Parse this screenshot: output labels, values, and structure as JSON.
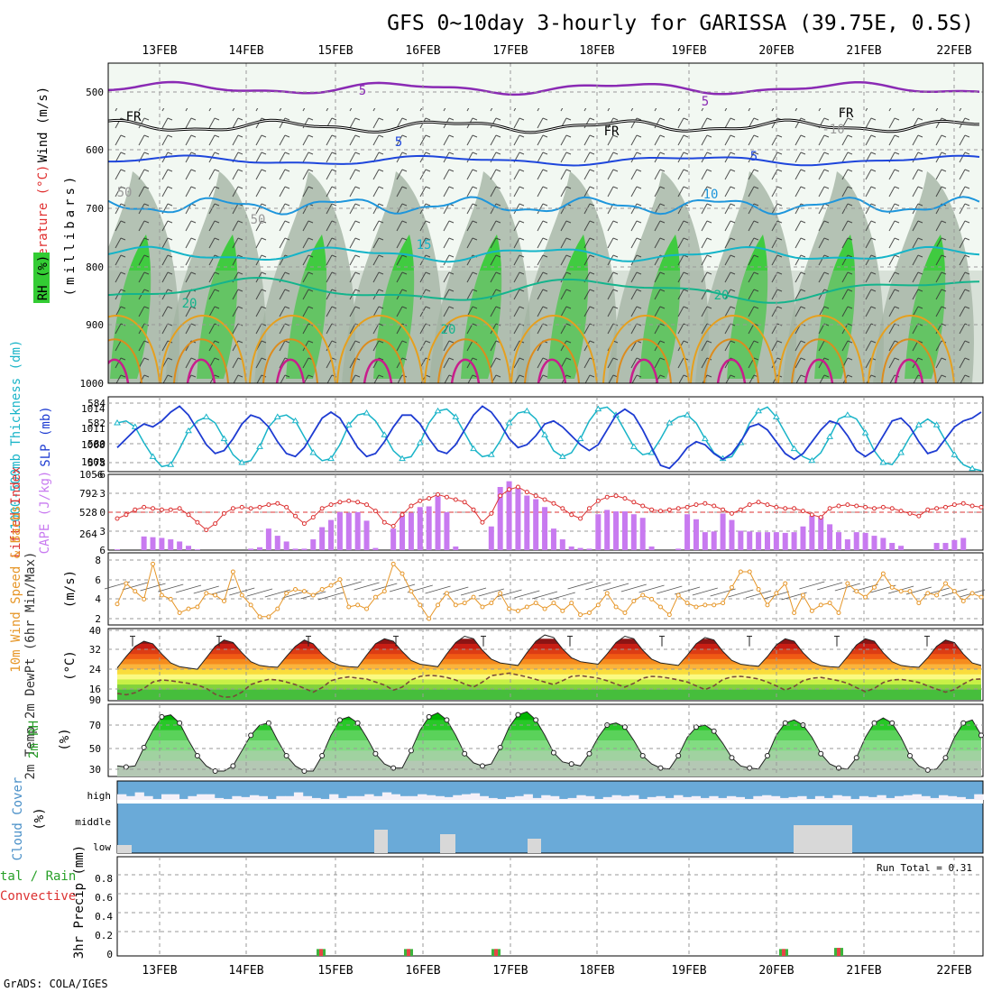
{
  "title": "GFS 0~10day 3-hourly for GARISSA (39.75E, 0.5S)",
  "footer": "GrADS: COLA/IGES",
  "dates": [
    "13FEB",
    "14FEB",
    "15FEB",
    "16FEB",
    "17FEB",
    "18FEB",
    "19FEB",
    "20FEB",
    "21FEB",
    "22FEB"
  ],
  "colors": {
    "rh_green": "#33cc33",
    "rh_gray": "#b8c8b8",
    "thickness": "#19b4c8",
    "slp": "#1e3cd2",
    "lifted": "#dc3232",
    "cape": "#c87af0",
    "wind": "#e69628",
    "dewpt": "#7a4a3a",
    "rh2m": "#28c828",
    "cloud": "#6aaad8",
    "cloud_gap": "#d8d8d8",
    "precip_total": "#3cb43c",
    "precip_conv": "#e64646"
  },
  "panels": {
    "pressure": {
      "ylabel_wind": "Wind (m/s)",
      "ylabel_temp": "Temperature (°C)",
      "ylabel_mb": "(millibars)",
      "ylabel_rh": "RH (%)",
      "ticks": [
        "500",
        "600",
        "700",
        "800",
        "900",
        "1000"
      ],
      "contour_labels": [
        "5",
        "5",
        "5",
        "5",
        "10",
        "15",
        "20",
        "20",
        "20",
        "FR",
        "FR",
        "FR",
        "-10",
        "50",
        "50"
      ]
    },
    "thickness_slp": {
      "ylabel_left": "1000-500mb Thickness (dm)",
      "ylabel_right": "SLP (mb)",
      "left_ticks": [
        "584",
        "582",
        "580",
        "578"
      ],
      "right_ticks": [
        "1014",
        "1011",
        "1008",
        "1005"
      ]
    },
    "lifted_cape": {
      "ylabel_left": "Lifted Index",
      "ylabel_right": "CAPE (J/kg)",
      "left_ticks": [
        "-6",
        "-3",
        "0",
        "3",
        "6"
      ],
      "right_ticks": [
        "1056",
        "792",
        "528",
        "264"
      ]
    },
    "wind10m": {
      "ylabel": "10m Wind Speed & Barbs",
      "unit": "(m/s)",
      "ticks": [
        "8",
        "6",
        "4",
        "2"
      ]
    },
    "temp2m": {
      "ylabel": "2m Temp 2m DewPt (6hr Min/Max)",
      "unit": "(°C)",
      "ticks": [
        "40",
        "32",
        "24",
        "16",
        "90"
      ]
    },
    "rh2m": {
      "ylabel": "2m RH",
      "unit": "(%)",
      "ticks": [
        "70",
        "50",
        "30"
      ]
    },
    "cloud": {
      "ylabel": "Cloud Cover",
      "unit": "(%)",
      "levels": [
        "high",
        "middle",
        "low"
      ]
    },
    "precip": {
      "ylabel": "3hr Precip (mm)",
      "legend_total": "tal / Rain",
      "legend_conv": "Convective",
      "run_total": "Run Total = 0.31",
      "ticks": [
        "0.8",
        "0.6",
        "0.4",
        "0.2",
        "0"
      ]
    }
  },
  "chart_data": {
    "type": "meteogram",
    "time_step_hours": 3,
    "x_range_days": [
      "13FEB",
      "22FEB"
    ],
    "thickness_dm": [
      582.0,
      582.2,
      581.6,
      580.0,
      578.6,
      577.6,
      577.8,
      579.4,
      581.2,
      582.2,
      582.6,
      582.0,
      580.4,
      578.8,
      578.0,
      578.2,
      579.6,
      581.6,
      582.6,
      582.8,
      582.2,
      580.6,
      579.0,
      578.2,
      578.4,
      579.8,
      581.8,
      582.8,
      583.0,
      582.2,
      580.8,
      579.2,
      578.4,
      578.6,
      580.0,
      582.0,
      583.2,
      583.4,
      582.6,
      581.0,
      579.4,
      578.6,
      578.8,
      580.2,
      582.0,
      583.0,
      583.2,
      582.4,
      580.8,
      579.2,
      578.6,
      579.0,
      580.4,
      582.2,
      583.4,
      583.6,
      582.8,
      581.2,
      579.6,
      578.8,
      579.0,
      580.4,
      582.0,
      582.6,
      582.8,
      582.0,
      580.4,
      579.0,
      578.4,
      578.6,
      580.0,
      582.0,
      583.2,
      583.6,
      582.6,
      581.0,
      579.4,
      578.6,
      578.2,
      579.0,
      580.6,
      582.4,
      582.8,
      582.4,
      581.0,
      579.2,
      578.0,
      577.8,
      579.0,
      580.6,
      581.8,
      582.4,
      581.8,
      580.2,
      578.8,
      577.8,
      577.4,
      577.2
    ],
    "slp_mb": [
      1008.0,
      1009.5,
      1011.0,
      1012.0,
      1011.5,
      1012.5,
      1014.0,
      1015.0,
      1013.5,
      1011.0,
      1008.5,
      1007.0,
      1007.5,
      1009.5,
      1012.0,
      1013.5,
      1013.0,
      1011.5,
      1009.0,
      1007.0,
      1006.5,
      1008.0,
      1010.5,
      1013.0,
      1014.0,
      1013.0,
      1010.5,
      1008.0,
      1006.5,
      1007.0,
      1009.0,
      1011.5,
      1013.5,
      1013.5,
      1012.0,
      1009.5,
      1007.5,
      1007.0,
      1008.5,
      1011.0,
      1013.5,
      1015.0,
      1014.0,
      1012.0,
      1009.5,
      1008.0,
      1008.5,
      1010.0,
      1012.0,
      1012.5,
      1011.5,
      1010.0,
      1008.5,
      1007.5,
      1008.5,
      1011.0,
      1013.5,
      1014.5,
      1013.5,
      1011.0,
      1008.0,
      1005.0,
      1004.5,
      1006.0,
      1008.0,
      1009.0,
      1008.5,
      1007.0,
      1006.0,
      1007.0,
      1009.0,
      1011.5,
      1012.0,
      1011.0,
      1009.0,
      1007.0,
      1006.0,
      1007.0,
      1009.0,
      1011.0,
      1012.5,
      1012.0,
      1010.0,
      1007.5,
      1006.5,
      1007.5,
      1010.0,
      1012.5,
      1013.0,
      1011.5,
      1009.0,
      1007.0,
      1007.5,
      1009.5,
      1011.5,
      1012.5,
      1013.0,
      1014.0
    ],
    "lifted_index": [
      1.0,
      0.4,
      -0.4,
      -0.8,
      -0.6,
      -0.4,
      -0.4,
      -0.6,
      0.4,
      1.6,
      2.8,
      1.8,
      0.2,
      -0.6,
      -0.8,
      -0.6,
      -0.8,
      -1.2,
      -1.4,
      -0.8,
      0.6,
      1.8,
      0.8,
      -0.6,
      -1.2,
      -1.6,
      -1.8,
      -1.6,
      -1.2,
      -0.2,
      1.6,
      2.2,
      0.4,
      -1.0,
      -1.8,
      -2.2,
      -2.8,
      -2.4,
      -2.0,
      -1.6,
      -0.4,
      1.6,
      0.2,
      -2.6,
      -3.6,
      -4.0,
      -3.2,
      -2.6,
      -2.0,
      -1.4,
      -0.6,
      0.4,
      1.0,
      -0.6,
      -1.8,
      -2.4,
      -2.6,
      -2.2,
      -1.6,
      -1.0,
      -0.4,
      -0.2,
      -0.4,
      -0.6,
      -0.8,
      -1.2,
      -1.4,
      -1.0,
      -0.4,
      0.2,
      -0.4,
      -1.2,
      -1.6,
      -1.2,
      -0.8,
      -0.6,
      -0.6,
      -0.2,
      0.4,
      0.8,
      -0.6,
      -1.0,
      -1.2,
      -1.0,
      -0.8,
      -0.6,
      -0.8,
      -0.6,
      -0.2,
      0.2,
      0.6,
      -0.4,
      -0.6,
      -0.8,
      -1.2,
      -1.4,
      -1.0,
      -0.8
    ],
    "cape_jkg": [
      10,
      0,
      0,
      190,
      180,
      170,
      150,
      120,
      60,
      10,
      0,
      0,
      0,
      0,
      0,
      20,
      40,
      300,
      200,
      120,
      20,
      20,
      150,
      320,
      420,
      530,
      520,
      530,
      410,
      30,
      0,
      300,
      500,
      520,
      600,
      610,
      750,
      530,
      50,
      0,
      0,
      0,
      330,
      880,
      960,
      860,
      760,
      710,
      600,
      300,
      150,
      50,
      30,
      20,
      500,
      560,
      540,
      540,
      500,
      450,
      50,
      0,
      0,
      20,
      500,
      430,
      250,
      260,
      510,
      420,
      270,
      260,
      250,
      250,
      250,
      240,
      250,
      330,
      480,
      470,
      360,
      250,
      150,
      250,
      240,
      200,
      170,
      100,
      60,
      0,
      0,
      0,
      100,
      100,
      140,
      170,
      0,
      0
    ],
    "wind10m_ms": [
      3.5,
      5.6,
      4.8,
      4.0,
      7.6,
      4.4,
      4.0,
      2.6,
      3.0,
      3.2,
      4.6,
      4.4,
      3.8,
      6.8,
      4.4,
      3.4,
      2.2,
      2.2,
      3.0,
      4.6,
      5.0,
      4.8,
      4.4,
      5.0,
      5.4,
      6.0,
      3.2,
      3.4,
      3.0,
      4.2,
      4.8,
      7.6,
      6.6,
      4.8,
      3.4,
      2.0,
      3.4,
      4.6,
      3.4,
      3.6,
      4.2,
      3.2,
      3.6,
      4.6,
      3.0,
      2.8,
      3.2,
      3.6,
      3.0,
      3.6,
      2.8,
      3.6,
      2.4,
      2.6,
      3.4,
      4.6,
      3.2,
      2.6,
      3.8,
      4.4,
      4.0,
      3.2,
      2.4,
      4.4,
      3.6,
      3.2,
      3.4,
      3.4,
      3.6,
      5.2,
      6.8,
      6.8,
      5.0,
      3.4,
      4.6,
      5.6,
      2.6,
      4.4,
      2.8,
      3.4,
      3.6,
      2.6,
      5.6,
      4.8,
      4.2,
      5.2,
      6.6,
      5.2,
      4.8,
      4.8,
      3.6,
      4.6,
      4.4,
      5.6,
      4.8,
      3.8,
      4.6,
      4.2
    ],
    "temp2m_c": [
      24.5,
      29.0,
      33.0,
      35.0,
      34.0,
      30.0,
      26.5,
      25.0,
      24.5,
      24.0,
      28.5,
      33.0,
      35.5,
      34.5,
      30.5,
      27.0,
      25.5,
      25.0,
      24.8,
      29.0,
      33.0,
      35.5,
      34.0,
      30.0,
      27.0,
      25.5,
      25.0,
      24.8,
      29.5,
      34.0,
      36.0,
      35.0,
      31.0,
      27.5,
      26.0,
      25.5,
      25.0,
      30.0,
      34.5,
      37.0,
      36.0,
      31.5,
      28.0,
      26.5,
      26.0,
      25.5,
      30.5,
      35.0,
      37.5,
      36.5,
      32.0,
      28.5,
      27.0,
      26.5,
      26.0,
      30.0,
      34.5,
      37.0,
      36.0,
      31.5,
      28.0,
      26.5,
      26.0,
      25.5,
      29.5,
      34.0,
      36.5,
      35.5,
      31.0,
      27.5,
      26.0,
      25.5,
      25.2,
      29.0,
      33.5,
      36.0,
      35.0,
      30.5,
      27.0,
      25.5,
      25.0,
      24.8,
      29.0,
      33.5,
      36.0,
      35.0,
      30.5,
      27.0,
      25.5,
      25.0,
      24.8,
      28.5,
      33.0,
      35.5,
      34.5,
      30.0,
      26.5,
      25.5
    ],
    "dewpt2m_c": [
      14.5,
      14.0,
      14.8,
      16.5,
      19.0,
      19.8,
      19.5,
      19.0,
      18.5,
      17.8,
      16.5,
      14.2,
      13.0,
      13.2,
      15.0,
      18.0,
      19.2,
      20.0,
      19.8,
      19.0,
      18.0,
      16.5,
      15.0,
      16.8,
      19.5,
      20.5,
      21.0,
      20.5,
      20.2,
      19.0,
      17.8,
      15.8,
      17.0,
      19.8,
      21.2,
      21.6,
      21.4,
      20.8,
      19.8,
      18.2,
      17.0,
      19.0,
      21.5,
      22.0,
      22.5,
      21.8,
      21.0,
      20.0,
      19.0,
      18.0,
      19.5,
      21.2,
      21.5,
      21.0,
      20.5,
      19.5,
      18.2,
      17.0,
      18.5,
      20.5,
      21.2,
      21.0,
      20.5,
      19.8,
      19.0,
      17.5,
      16.0,
      17.5,
      20.0,
      21.0,
      21.2,
      20.8,
      20.2,
      19.0,
      17.5,
      15.8,
      17.2,
      19.5,
      20.5,
      20.8,
      20.2,
      19.5,
      18.5,
      16.8,
      15.2,
      16.5,
      18.8,
      19.8,
      20.0,
      19.5,
      18.8,
      17.5,
      16.2,
      15.0,
      16.0,
      18.2,
      20.0,
      20.2
    ],
    "rh2m_pct": [
      30,
      29,
      30,
      48,
      65,
      78,
      80,
      72,
      55,
      40,
      30,
      25,
      25,
      30,
      45,
      60,
      70,
      72,
      55,
      40,
      30,
      25,
      25,
      40,
      60,
      75,
      78,
      72,
      58,
      42,
      32,
      28,
      28,
      45,
      65,
      78,
      82,
      75,
      60,
      42,
      33,
      30,
      32,
      48,
      68,
      80,
      83,
      75,
      60,
      43,
      34,
      32,
      30,
      42,
      58,
      70,
      72,
      68,
      55,
      40,
      32,
      28,
      27,
      40,
      58,
      68,
      70,
      64,
      52,
      38,
      30,
      28,
      27,
      40,
      60,
      72,
      75,
      70,
      58,
      42,
      32,
      28,
      27,
      38,
      58,
      72,
      77,
      72,
      58,
      40,
      30,
      26,
      27,
      38,
      58,
      72,
      75,
      60
    ],
    "cloud_high_pct": [
      70,
      80,
      60,
      80,
      95,
      70,
      70,
      95,
      80,
      70,
      70,
      90,
      95,
      80,
      85,
      75,
      80,
      95,
      80,
      80,
      60,
      80,
      90,
      95,
      70,
      90,
      80,
      80,
      70,
      80,
      60,
      70,
      80,
      80,
      70,
      75,
      80,
      85,
      75,
      70,
      65,
      80,
      90,
      95,
      85,
      80,
      70,
      90,
      75,
      80,
      95,
      90,
      75,
      80,
      95,
      85,
      75,
      80,
      75,
      95,
      85,
      80,
      90,
      75,
      85,
      80,
      90,
      80,
      90,
      80,
      85,
      95,
      80,
      75,
      80,
      90,
      85,
      80,
      95,
      80,
      90,
      75,
      80,
      95,
      80,
      85,
      75,
      90,
      80,
      75,
      70,
      80,
      90,
      75,
      80,
      85,
      95,
      70
    ],
    "cloud_middle_pct": [
      100,
      100,
      100,
      100,
      100,
      100,
      100,
      100,
      100,
      100,
      100,
      100,
      100,
      100,
      100,
      100,
      100,
      100,
      100,
      100,
      100,
      100,
      100,
      100,
      100,
      100,
      100,
      100,
      100,
      100,
      100,
      100,
      100,
      100,
      100,
      100,
      100,
      100,
      100,
      100,
      100,
      100,
      100,
      100,
      100,
      100,
      100,
      100,
      100,
      100,
      100,
      100,
      100,
      100,
      100,
      100,
      100,
      100,
      100,
      100,
      100,
      100,
      100,
      100,
      100,
      100,
      100,
      100,
      100,
      100,
      100,
      100,
      100,
      100,
      100,
      100,
      100,
      100,
      100,
      100,
      100,
      100,
      100,
      100,
      100,
      100,
      100,
      100,
      100,
      100,
      100,
      100,
      100,
      100,
      100,
      100,
      100,
      100
    ],
    "cloud_low_pct": [
      80,
      100,
      100,
      100,
      100,
      100,
      100,
      100,
      100,
      100,
      100,
      100,
      100,
      100,
      100,
      100,
      100,
      100,
      100,
      100,
      100,
      100,
      100,
      100,
      100,
      100,
      100,
      100,
      100,
      100,
      100,
      100,
      100,
      100,
      100,
      100,
      100,
      100,
      100,
      100,
      100,
      100,
      100,
      100,
      100,
      100,
      100,
      100,
      100,
      100,
      100,
      100,
      100,
      100,
      100,
      100,
      100,
      100,
      100,
      100,
      100,
      100,
      100,
      100,
      100,
      100,
      100,
      100,
      100,
      100,
      100,
      100,
      100,
      100,
      100,
      100,
      100,
      100,
      100,
      100,
      100,
      100,
      100,
      100,
      100,
      100,
      100,
      100,
      100,
      100,
      100,
      100,
      100,
      100,
      100,
      100,
      100,
      100
    ],
    "precip_total_mm": [
      0,
      0,
      0,
      0,
      0,
      0,
      0,
      0,
      0,
      0,
      0,
      0,
      0,
      0,
      0,
      0,
      0,
      0,
      0,
      0,
      0,
      0,
      0,
      0,
      0,
      0,
      0,
      0,
      0,
      0,
      0,
      0,
      0,
      0,
      0,
      0,
      0,
      0,
      0,
      0,
      0,
      0.02,
      0,
      0,
      0,
      0,
      0,
      0,
      0,
      0,
      0,
      0,
      0,
      0,
      0,
      0,
      0,
      0,
      0,
      0,
      0,
      0,
      0,
      0,
      0,
      0,
      0,
      0,
      0,
      0,
      0,
      0,
      0,
      0,
      0,
      0,
      0,
      0,
      0,
      0,
      0,
      0,
      0,
      0,
      0,
      0,
      0,
      0,
      0,
      0,
      0,
      0,
      0,
      0,
      0,
      0,
      0,
      0
    ],
    "precip_events": [
      {
        "day": "15FEB",
        "hour": 6,
        "mm": 0.06
      },
      {
        "day": "16FEB",
        "hour": 6,
        "mm": 0.06
      },
      {
        "day": "17FEB",
        "hour": 6,
        "mm": 0.06
      },
      {
        "day": "20FEB",
        "hour": 12,
        "mm": 0.06
      },
      {
        "day": "21FEB",
        "hour": 3,
        "mm": 0.07
      }
    ],
    "run_total_mm": 0.31
  }
}
